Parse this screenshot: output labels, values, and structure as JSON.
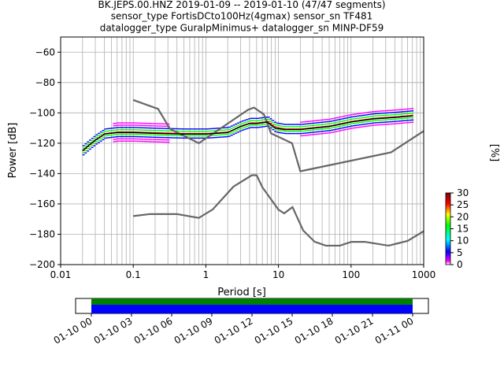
{
  "chart_data": {
    "type": "heatmap",
    "title_lines": [
      "BK.JEPS.00.HNZ   2019-01-09 -- 2019-01-10  (47/47 segments)",
      "sensor_type FortisDCto100Hz(4gmax) sensor_sn TF481",
      "datalogger_type GuralpMinimus+ datalogger_sn MINP-DF59"
    ],
    "xlabel": "Period [s]",
    "ylabel": "Power [dB]",
    "x_scale": "log",
    "xlim": [
      0.01,
      1000
    ],
    "ylim": [
      -200,
      -50
    ],
    "grid": true,
    "x_tick_labels": [
      "0.01",
      "0.1",
      "1",
      "10",
      "100",
      "1000"
    ],
    "x_tick_values": [
      0.01,
      0.1,
      1,
      10,
      100,
      1000
    ],
    "y_tick_labels": [
      "−200",
      "−180",
      "−160",
      "−140",
      "−120",
      "−100",
      "−80",
      "−60"
    ],
    "y_tick_values": [
      -200,
      -180,
      -160,
      -140,
      -120,
      -100,
      -80,
      -60
    ],
    "colorbar": {
      "label": "[%]",
      "range": [
        0,
        30
      ],
      "tick_labels": [
        "0",
        "5",
        "10",
        "15",
        "20",
        "25",
        "30"
      ],
      "tick_values": [
        0,
        5,
        10,
        15,
        20,
        25,
        30
      ],
      "colormap": "pqlx"
    },
    "series": [
      {
        "role": "high noise model",
        "color": "#666666",
        "x": [
          0.1,
          0.22,
          0.32,
          0.8,
          3.8,
          4.6,
          6.3,
          7.9,
          15.4,
          20,
          354.8,
          1000
        ],
        "y": [
          -91.5,
          -97.4,
          -110.5,
          -120,
          -98.0,
          -96.5,
          -101.0,
          -113.5,
          -120,
          -138.5,
          -126,
          -112
        ]
      },
      {
        "role": "low noise model",
        "color": "#666666",
        "x": [
          0.1,
          0.17,
          0.4,
          0.8,
          1.24,
          2.4,
          4.3,
          5.0,
          6.0,
          10.0,
          12.0,
          15.6,
          21.9,
          31.6,
          45,
          70,
          101,
          154,
          328,
          600,
          1000
        ],
        "y": [
          -168,
          -166.7,
          -166.7,
          -169.2,
          -163.7,
          -148.6,
          -141.1,
          -141.1,
          -149.0,
          -163.8,
          -166.2,
          -162.1,
          -177.5,
          -185.0,
          -187.5,
          -187.5,
          -185.0,
          -185.0,
          -187.5,
          -184.4,
          -178
        ]
      },
      {
        "role": "mode PSD",
        "color": "#000000",
        "x": [
          0.02,
          0.025,
          0.03,
          0.04,
          0.06,
          0.1,
          0.2,
          0.5,
          1.0,
          2.0,
          3.0,
          4.0,
          5.0,
          6.0,
          7.0,
          9.0,
          12,
          20,
          50,
          100,
          200,
          400,
          700
        ],
        "y": [
          -125,
          -121,
          -118,
          -114,
          -113,
          -113,
          -113.5,
          -114,
          -114,
          -113,
          -109,
          -107,
          -107,
          -106.5,
          -106,
          -110,
          -111,
          -111,
          -109,
          -106,
          -104,
          -103,
          -102
        ]
      }
    ],
    "time_axis": {
      "tick_labels": [
        "01-10 00",
        "01-10 03",
        "01-10 06",
        "01-10 09",
        "01-10 12",
        "01-10 15",
        "01-10 18",
        "01-10 21",
        "01-11 00"
      ],
      "tick_values_hours": [
        0,
        3,
        6,
        9,
        12,
        15,
        18,
        21,
        24
      ],
      "data_coverage": {
        "start_hour": 0,
        "end_hour": 24
      },
      "gap_coverage": {
        "start_hour": 0,
        "end_hour": 24
      },
      "data_color": "#0000ff",
      "gaps_color": "#008000"
    }
  }
}
